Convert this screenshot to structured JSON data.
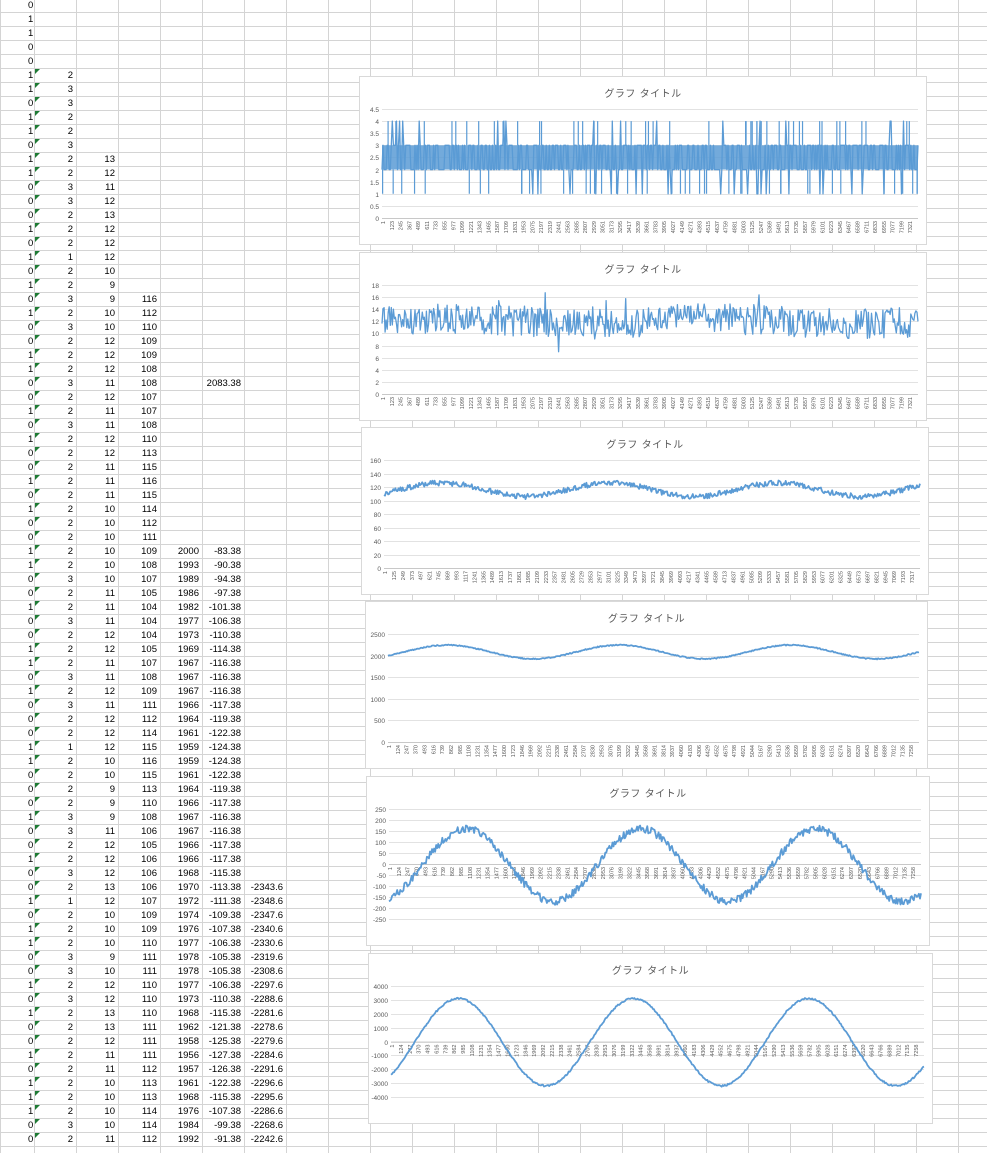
{
  "sheet": {
    "rows": [
      [
        "0"
      ],
      [
        "1"
      ],
      [
        "1"
      ],
      [
        "0"
      ],
      [
        "0"
      ],
      [
        "1",
        "2"
      ],
      [
        "1",
        "3"
      ],
      [
        "0",
        "3"
      ],
      [
        "1",
        "2"
      ],
      [
        "1",
        "2"
      ],
      [
        "0",
        "3"
      ],
      [
        "1",
        "2",
        "13"
      ],
      [
        "1",
        "2",
        "12"
      ],
      [
        "0",
        "3",
        "11"
      ],
      [
        "0",
        "3",
        "12"
      ],
      [
        "0",
        "2",
        "13"
      ],
      [
        "1",
        "2",
        "12"
      ],
      [
        "0",
        "2",
        "12"
      ],
      [
        "1",
        "1",
        "12"
      ],
      [
        "0",
        "2",
        "10"
      ],
      [
        "1",
        "2",
        "9"
      ],
      [
        "0",
        "3",
        "9",
        "116"
      ],
      [
        "1",
        "2",
        "10",
        "112"
      ],
      [
        "0",
        "3",
        "10",
        "110"
      ],
      [
        "0",
        "2",
        "12",
        "109"
      ],
      [
        "1",
        "2",
        "12",
        "109"
      ],
      [
        "1",
        "2",
        "12",
        "108"
      ],
      [
        "0",
        "3",
        "11",
        "108",
        "",
        "2083.38"
      ],
      [
        "0",
        "2",
        "12",
        "107"
      ],
      [
        "1",
        "2",
        "11",
        "107"
      ],
      [
        "0",
        "3",
        "11",
        "108"
      ],
      [
        "1",
        "2",
        "12",
        "110"
      ],
      [
        "0",
        "2",
        "12",
        "113"
      ],
      [
        "0",
        "2",
        "11",
        "115"
      ],
      [
        "1",
        "2",
        "11",
        "116"
      ],
      [
        "0",
        "2",
        "11",
        "115"
      ],
      [
        "1",
        "2",
        "10",
        "114"
      ],
      [
        "0",
        "2",
        "10",
        "112"
      ],
      [
        "0",
        "2",
        "10",
        "111"
      ],
      [
        "1",
        "2",
        "10",
        "109",
        "2000",
        "-83.38"
      ],
      [
        "1",
        "2",
        "10",
        "108",
        "1993",
        "-90.38"
      ],
      [
        "0",
        "3",
        "10",
        "107",
        "1989",
        "-94.38"
      ],
      [
        "0",
        "2",
        "11",
        "105",
        "1986",
        "-97.38"
      ],
      [
        "1",
        "2",
        "11",
        "104",
        "1982",
        "-101.38"
      ],
      [
        "0",
        "3",
        "11",
        "104",
        "1977",
        "-106.38"
      ],
      [
        "0",
        "2",
        "12",
        "104",
        "1973",
        "-110.38"
      ],
      [
        "1",
        "2",
        "12",
        "105",
        "1969",
        "-114.38"
      ],
      [
        "1",
        "2",
        "11",
        "107",
        "1967",
        "-116.38"
      ],
      [
        "0",
        "3",
        "11",
        "108",
        "1967",
        "-116.38"
      ],
      [
        "1",
        "2",
        "12",
        "109",
        "1967",
        "-116.38"
      ],
      [
        "0",
        "3",
        "11",
        "111",
        "1966",
        "-117.38"
      ],
      [
        "0",
        "2",
        "12",
        "112",
        "1964",
        "-119.38"
      ],
      [
        "0",
        "2",
        "12",
        "114",
        "1961",
        "-122.38"
      ],
      [
        "1",
        "1",
        "12",
        "115",
        "1959",
        "-124.38"
      ],
      [
        "1",
        "2",
        "10",
        "116",
        "1959",
        "-124.38"
      ],
      [
        "0",
        "2",
        "10",
        "115",
        "1961",
        "-122.38"
      ],
      [
        "0",
        "2",
        "9",
        "113",
        "1964",
        "-119.38"
      ],
      [
        "0",
        "2",
        "9",
        "110",
        "1966",
        "-117.38"
      ],
      [
        "1",
        "3",
        "9",
        "108",
        "1967",
        "-116.38"
      ],
      [
        "0",
        "3",
        "11",
        "106",
        "1967",
        "-116.38"
      ],
      [
        "0",
        "2",
        "12",
        "105",
        "1966",
        "-117.38"
      ],
      [
        "1",
        "2",
        "12",
        "106",
        "1966",
        "-117.38"
      ],
      [
        "0",
        "3",
        "12",
        "106",
        "1968",
        "-115.38"
      ],
      [
        "0",
        "2",
        "13",
        "106",
        "1970",
        "-113.38",
        "-2343.6"
      ],
      [
        "1",
        "1",
        "12",
        "107",
        "1972",
        "-111.38",
        "-2348.6"
      ],
      [
        "0",
        "2",
        "10",
        "109",
        "1974",
        "-109.38",
        "-2347.6"
      ],
      [
        "1",
        "2",
        "10",
        "109",
        "1976",
        "-107.38",
        "-2340.6"
      ],
      [
        "1",
        "2",
        "10",
        "110",
        "1977",
        "-106.38",
        "-2330.6"
      ],
      [
        "0",
        "3",
        "9",
        "111",
        "1978",
        "-105.38",
        "-2319.6"
      ],
      [
        "0",
        "3",
        "10",
        "111",
        "1978",
        "-105.38",
        "-2308.6"
      ],
      [
        "1",
        "2",
        "12",
        "110",
        "1977",
        "-106.38",
        "-2297.6"
      ],
      [
        "0",
        "3",
        "12",
        "110",
        "1973",
        "-110.38",
        "-2288.6"
      ],
      [
        "1",
        "2",
        "13",
        "110",
        "1968",
        "-115.38",
        "-2281.6"
      ],
      [
        "0",
        "2",
        "13",
        "111",
        "1962",
        "-121.38",
        "-2278.6"
      ],
      [
        "0",
        "2",
        "12",
        "111",
        "1958",
        "-125.38",
        "-2279.6"
      ],
      [
        "1",
        "2",
        "11",
        "111",
        "1956",
        "-127.38",
        "-2284.6"
      ],
      [
        "0",
        "2",
        "11",
        "112",
        "1957",
        "-126.38",
        "-2291.6"
      ],
      [
        "1",
        "2",
        "10",
        "113",
        "1961",
        "-122.38",
        "-2296.6"
      ],
      [
        "1",
        "2",
        "10",
        "113",
        "1968",
        "-115.38",
        "-2295.6"
      ],
      [
        "1",
        "2",
        "10",
        "114",
        "1976",
        "-107.38",
        "-2286.6"
      ],
      [
        "0",
        "3",
        "10",
        "114",
        "1984",
        "-99.38",
        "-2268.6"
      ],
      [
        "0",
        "2",
        "11",
        "112",
        "1992",
        "-91.38",
        "-2242.6"
      ]
    ]
  },
  "chart_data": [
    {
      "type": "line",
      "title": "グラフ タイトル",
      "ylim": [
        0,
        4.5
      ],
      "yticks": [
        "0",
        "0.5",
        "1",
        "1.5",
        "2",
        "2.5",
        "3",
        "3.5",
        "4",
        "4.5"
      ],
      "x_ticks": [
        "1",
        "123",
        "245",
        "367",
        "489",
        "611",
        "733",
        "855",
        "977",
        "1099",
        "1221",
        "1343",
        "1465",
        "1587",
        "1709",
        "1831",
        "1953",
        "2075",
        "2197",
        "2319",
        "2441",
        "2563",
        "2685",
        "2807",
        "2929",
        "3051",
        "3173",
        "3295",
        "3417",
        "3539",
        "3661",
        "3783",
        "3905",
        "4027",
        "4149",
        "4271",
        "4393",
        "4515",
        "4637",
        "4759",
        "4881",
        "5003",
        "5125",
        "5247",
        "5369",
        "5491",
        "5613",
        "5735",
        "5857",
        "5979",
        "6101",
        "6223",
        "6345",
        "6467",
        "6589",
        "6711",
        "6833",
        "6955",
        "7077",
        "7199",
        "7321"
      ],
      "color": "#5b9bd5",
      "grid": true,
      "legend": "none"
    },
    {
      "type": "line",
      "title": "グラフ タイトル",
      "ylim": [
        0,
        18
      ],
      "yticks": [
        "0",
        "2",
        "4",
        "6",
        "8",
        "10",
        "12",
        "14",
        "16",
        "18"
      ],
      "x_ticks": [
        "1",
        "123",
        "245",
        "367",
        "489",
        "611",
        "733",
        "855",
        "977",
        "1099",
        "1221",
        "1343",
        "1465",
        "1587",
        "1709",
        "1831",
        "1953",
        "2075",
        "2197",
        "2319",
        "2441",
        "2563",
        "2685",
        "2807",
        "2929",
        "3051",
        "3173",
        "3295",
        "3417",
        "3539",
        "3661",
        "3783",
        "3905",
        "4027",
        "4149",
        "4271",
        "4393",
        "4515",
        "4637",
        "4759",
        "4881",
        "5003",
        "5125",
        "5247",
        "5369",
        "5491",
        "5613",
        "5735",
        "5857",
        "5979",
        "6101",
        "6223",
        "6345",
        "6467",
        "6589",
        "6711",
        "6833",
        "6955",
        "7077",
        "7199",
        "7321"
      ],
      "color": "#5b9bd5",
      "grid": true,
      "legend": "none"
    },
    {
      "type": "line",
      "title": "グラフ タイトル",
      "ylim": [
        0,
        160
      ],
      "yticks": [
        "0",
        "20",
        "40",
        "60",
        "80",
        "100",
        "120",
        "140",
        "160"
      ],
      "x_ticks": [
        "1",
        "125",
        "249",
        "373",
        "497",
        "621",
        "745",
        "869",
        "993",
        "1117",
        "1241",
        "1365",
        "1489",
        "1613",
        "1737",
        "1861",
        "1985",
        "2109",
        "2233",
        "2357",
        "2481",
        "2605",
        "2729",
        "2853",
        "2977",
        "3101",
        "3225",
        "3349",
        "3473",
        "3597",
        "3721",
        "3845",
        "3969",
        "4093",
        "4217",
        "4341",
        "4465",
        "4589",
        "4713",
        "4837",
        "4961",
        "5085",
        "5209",
        "5333",
        "5457",
        "5581",
        "5705",
        "5829",
        "5953",
        "6077",
        "6201",
        "6325",
        "6449",
        "6573",
        "6697",
        "6821",
        "6945",
        "7069",
        "7193",
        "7317"
      ],
      "color": "#5b9bd5",
      "grid": true,
      "legend": "none"
    },
    {
      "type": "line",
      "title": "グラフ タイトル",
      "ylim": [
        0,
        2500
      ],
      "yticks": [
        "0",
        "500",
        "1000",
        "1500",
        "2000",
        "2500"
      ],
      "x_ticks": [
        "1",
        "124",
        "247",
        "370",
        "493",
        "616",
        "739",
        "862",
        "985",
        "1108",
        "1231",
        "1354",
        "1477",
        "1600",
        "1723",
        "1846",
        "1969",
        "2092",
        "2215",
        "2338",
        "2461",
        "2584",
        "2707",
        "2830",
        "2953",
        "3076",
        "3199",
        "3322",
        "3445",
        "3568",
        "3691",
        "3814",
        "3937",
        "4060",
        "4183",
        "4306",
        "4429",
        "4552",
        "4675",
        "4798",
        "4921",
        "5044",
        "5167",
        "5290",
        "5413",
        "5536",
        "5659",
        "5782",
        "5905",
        "6028",
        "6151",
        "6274",
        "6397",
        "6520",
        "6643",
        "6766",
        "6889",
        "7012",
        "7135",
        "7258"
      ],
      "color": "#5b9bd5",
      "grid": true,
      "legend": "none"
    },
    {
      "type": "line",
      "title": "グラフ タイトル",
      "ylim": [
        -250,
        250
      ],
      "yticks": [
        "-250",
        "-200",
        "-150",
        "-100",
        "-50",
        "0",
        "50",
        "100",
        "150",
        "200",
        "250"
      ],
      "x_ticks": [
        "1",
        "124",
        "247",
        "370",
        "493",
        "616",
        "739",
        "862",
        "985",
        "1108",
        "1231",
        "1354",
        "1477",
        "1600",
        "1723",
        "1846",
        "1969",
        "2092",
        "2215",
        "2338",
        "2461",
        "2584",
        "2707",
        "2830",
        "2953",
        "3076",
        "3199",
        "3322",
        "3445",
        "3568",
        "3691",
        "3814",
        "3937",
        "4060",
        "4183",
        "4306",
        "4429",
        "4552",
        "4675",
        "4798",
        "4921",
        "5044",
        "5167",
        "5290",
        "5413",
        "5536",
        "5659",
        "5782",
        "5905",
        "6028",
        "6151",
        "6274",
        "6397",
        "6520",
        "6643",
        "6766",
        "6889",
        "7012",
        "7135",
        "7258"
      ],
      "color": "#5b9bd5",
      "grid": true,
      "legend": "none"
    },
    {
      "type": "line",
      "title": "グラフ タイトル",
      "ylim": [
        -4000,
        4000
      ],
      "yticks": [
        "-4000",
        "-3000",
        "-2000",
        "-1000",
        "0",
        "1000",
        "2000",
        "3000",
        "4000"
      ],
      "x_ticks": [
        "1",
        "124",
        "247",
        "370",
        "493",
        "616",
        "739",
        "862",
        "985",
        "1108",
        "1231",
        "1354",
        "1477",
        "1600",
        "1723",
        "1846",
        "1969",
        "2092",
        "2215",
        "2338",
        "2461",
        "2584",
        "2707",
        "2830",
        "2953",
        "3076",
        "3199",
        "3322",
        "3445",
        "3568",
        "3691",
        "3814",
        "3937",
        "4060",
        "4183",
        "4306",
        "4429",
        "4552",
        "4675",
        "4798",
        "4921",
        "5044",
        "5167",
        "5290",
        "5413",
        "5536",
        "5659",
        "5782",
        "5905",
        "6028",
        "6151",
        "6274",
        "6397",
        "6520",
        "6643",
        "6766",
        "6889",
        "7012",
        "7135",
        "7258"
      ],
      "color": "#5b9bd5",
      "grid": true,
      "legend": "none"
    }
  ]
}
